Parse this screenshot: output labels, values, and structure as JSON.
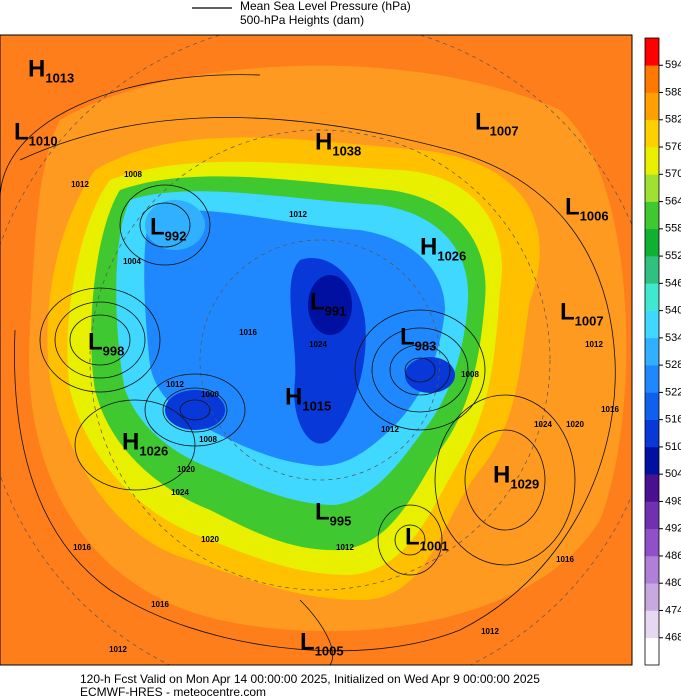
{
  "legend": {
    "line_label": "Mean Sea Level Pressure (hPa)",
    "fill_label": "500-hPa Heights (dam)"
  },
  "colorbar": {
    "ticks": [
      468,
      474,
      480,
      486,
      492,
      498,
      504,
      510,
      516,
      522,
      528,
      534,
      540,
      546,
      552,
      558,
      564,
      570,
      576,
      582,
      588,
      594
    ],
    "colors": [
      "#ffffff",
      "#e6d8f0",
      "#c8a8e0",
      "#b080d8",
      "#9050c8",
      "#7030b0",
      "#4a1090",
      "#0010a0",
      "#0838d8",
      "#1060f0",
      "#2088ff",
      "#30b0ff",
      "#40d8ff",
      "#40e8d0",
      "#30c080",
      "#10b030",
      "#40c830",
      "#a0e030",
      "#e8f000",
      "#ffd000",
      "#ffa000",
      "#ff7800",
      "#ff0000"
    ]
  },
  "pressure_centers": [
    {
      "type": "H",
      "value": "1013"
    },
    {
      "type": "L",
      "value": "1010"
    },
    {
      "type": "H",
      "value": "1038"
    },
    {
      "type": "L",
      "value": "1007"
    },
    {
      "type": "L",
      "value": "1006"
    },
    {
      "type": "L",
      "value": "992"
    },
    {
      "type": "H",
      "value": "1026"
    },
    {
      "type": "L",
      "value": "991"
    },
    {
      "type": "L",
      "value": "1007"
    },
    {
      "type": "L",
      "value": "998"
    },
    {
      "type": "L",
      "value": "983"
    },
    {
      "type": "H",
      "value": "1015"
    },
    {
      "type": "H",
      "value": "1026"
    },
    {
      "type": "H",
      "value": "1029"
    },
    {
      "type": "L",
      "value": "995"
    },
    {
      "type": "L",
      "value": "1001"
    },
    {
      "type": "L",
      "value": "1005"
    }
  ],
  "isobar_labels": [
    "1012",
    "1008",
    "1004",
    "1012",
    "1016",
    "1024",
    "1012",
    "1000",
    "1008",
    "1020",
    "1024",
    "1016",
    "1020",
    "1016",
    "1012",
    "1012",
    "1016",
    "1024",
    "1020",
    "1016",
    "1012",
    "1012",
    "1008",
    "1012"
  ],
  "footer": [
    "120-h Fcst Valid on Mon Apr 14 00:00:00 2025, Initialized on Wed Apr  9 00:00:00 2025",
    "ECMWF-HRES  - meteocentre.com"
  ]
}
